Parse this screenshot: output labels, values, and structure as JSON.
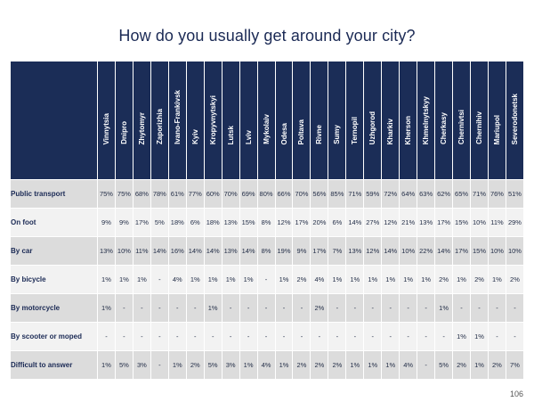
{
  "title": "How do you usually get around your city?",
  "page_number": "106",
  "cities": [
    "Vinnytsia",
    "Dnipro",
    "Zhytomyr",
    "Zaporizhia",
    "Ivano-Frankivsk",
    "Kyiv",
    "Kropyvnytskyi",
    "Lutsk",
    "Lviv",
    "Mykolaiv",
    "Odesa",
    "Poltava",
    "Rivne",
    "Sumy",
    "Ternopil",
    "Uzhgorod",
    "Kharkiv",
    "Kherson",
    "Khmelnytskyy",
    "Cherkasy",
    "Chernivtsi",
    "Chernihiv",
    "Mariupol",
    "Severodonetsk"
  ],
  "rows": [
    {
      "label": "Public transport",
      "values": [
        "75%",
        "75%",
        "68%",
        "78%",
        "61%",
        "77%",
        "60%",
        "70%",
        "69%",
        "80%",
        "66%",
        "70%",
        "56%",
        "85%",
        "71%",
        "59%",
        "72%",
        "64%",
        "63%",
        "62%",
        "65%",
        "71%",
        "76%",
        "51%"
      ]
    },
    {
      "label": "On foot",
      "values": [
        "9%",
        "9%",
        "17%",
        "5%",
        "18%",
        "6%",
        "18%",
        "13%",
        "15%",
        "8%",
        "12%",
        "17%",
        "20%",
        "6%",
        "14%",
        "27%",
        "12%",
        "21%",
        "13%",
        "17%",
        "15%",
        "10%",
        "11%",
        "29%"
      ]
    },
    {
      "label": "By car",
      "values": [
        "13%",
        "10%",
        "11%",
        "14%",
        "16%",
        "14%",
        "14%",
        "13%",
        "14%",
        "8%",
        "19%",
        "9%",
        "17%",
        "7%",
        "13%",
        "12%",
        "14%",
        "10%",
        "22%",
        "14%",
        "17%",
        "15%",
        "10%",
        "10%"
      ]
    },
    {
      "label": "By bicycle",
      "values": [
        "1%",
        "1%",
        "1%",
        "-",
        "4%",
        "1%",
        "1%",
        "1%",
        "1%",
        "-",
        "1%",
        "2%",
        "4%",
        "1%",
        "1%",
        "1%",
        "1%",
        "1%",
        "1%",
        "2%",
        "1%",
        "2%",
        "1%",
        "2%"
      ]
    },
    {
      "label": "By motorcycle",
      "values": [
        "1%",
        "-",
        "-",
        "-",
        "-",
        "-",
        "1%",
        "-",
        "-",
        "-",
        "-",
        "-",
        "2%",
        "-",
        "-",
        "-",
        "-",
        "-",
        "-",
        "1%",
        "-",
        "-",
        "-",
        "-"
      ]
    },
    {
      "label": "By scooter or moped",
      "values": [
        "-",
        "-",
        "-",
        "-",
        "-",
        "-",
        "-",
        "-",
        "-",
        "-",
        "-",
        "-",
        "-",
        "-",
        "-",
        "-",
        "-",
        "-",
        "-",
        "-",
        "1%",
        "1%",
        "-",
        "-"
      ]
    },
    {
      "label": "Difficult to answer",
      "values": [
        "1%",
        "5%",
        "3%",
        "-",
        "1%",
        "2%",
        "5%",
        "3%",
        "1%",
        "4%",
        "1%",
        "2%",
        "2%",
        "2%",
        "1%",
        "1%",
        "1%",
        "4%",
        "-",
        "5%",
        "2%",
        "1%",
        "2%",
        "7%"
      ]
    }
  ]
}
